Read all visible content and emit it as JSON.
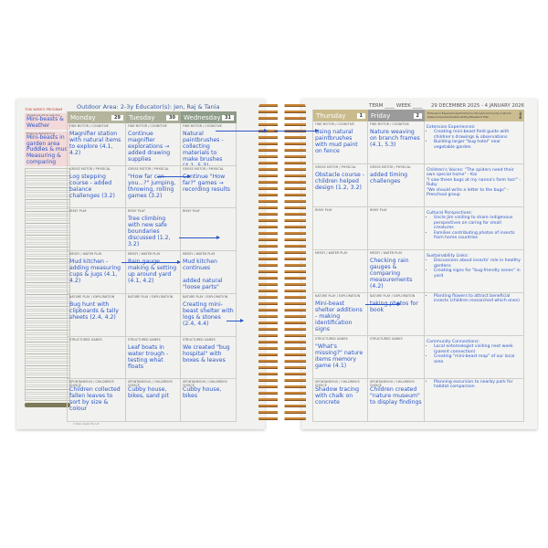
{
  "left": {
    "title": "Outdoor Area: 2-3y  Educator(s): Jen, Raj & Tania",
    "sidebar": {
      "heading": "THIS WEEK'S PROGRAM",
      "boxes": [
        {
          "label": "Interests we will be exploring",
          "value": "Mini-beasts & Weather"
        },
        {
          "label": "Emerging ideas/planning",
          "value": "Mini-beasts in garden area Puddles & mud Measuring & comparing"
        }
      ],
      "footer": "",
      "copyright": "© Bobo Sketch Pty Ltd"
    },
    "days": [
      {
        "name": "Monday",
        "date": "29",
        "color": "#b3b49b"
      },
      {
        "name": "Tuesday",
        "date": "30",
        "color": "#a8ad98"
      },
      {
        "name": "Wednesday",
        "date": "31",
        "color": "#8e9c89"
      }
    ],
    "rows": [
      {
        "category": "Fine motor / Cognitive",
        "cells": [
          "Magnifier station with natural items to explore (4.1, 4.2)",
          "Continue magnifier explorations → added drawing supplies",
          "Natural paintbrushes - collecting materials to make brushes (4.1, 5.3)"
        ]
      },
      {
        "category": "Gross motor / Physical",
        "cells": [
          "Log stepping course - added balance challenges (3.2)",
          "\"How far can you...?\" jumping, throwing, rolling games (3.2)",
          "Continue \"How far?\" games → recording results"
        ]
      },
      {
        "category": "Risky play",
        "cells": [
          "",
          "Tree climbing with new safe boundaries discussed (1.2, 3.2)",
          ""
        ]
      },
      {
        "category": "Messy / Water play",
        "cells": [
          "Mud kitchen - adding measuring cups & jugs (4.1, 4.2)",
          "Rain gauge making & setting up around yard (4.1, 4.2)",
          "Mud kitchen continues\n\nadded natural \"loose parts\""
        ]
      },
      {
        "category": "Nature play / Exploration",
        "cells": [
          "Bug hunt with clipboards & tally sheets (2.4, 4.2)",
          "",
          "Creating mini-beast shelter with logs & stones (2.4, 4.4)"
        ]
      },
      {
        "category": "Structured games",
        "cells": [
          "",
          "Leaf boats in water trough - testing what floats",
          "We created \"bug hospital\" with boxes & leaves"
        ]
      },
      {
        "category": "Spontaneous / Children's choice",
        "cells": [
          "Children collected fallen leaves to sort by size & colour",
          "Cubby house, bikes, sand pit",
          "Cubby house, bikes"
        ]
      }
    ]
  },
  "right": {
    "term_label": "TERM",
    "week_label": "WEEK",
    "date_range": "29 DECEMBER 2025 - 4 JANUARY 2026",
    "days": [
      {
        "name": "Thursday",
        "date": "1",
        "color": "#c9bb8c"
      },
      {
        "name": "Friday",
        "date": "2",
        "color": "#9b9b9b"
      }
    ],
    "ext_header": "Extension Experiences/Children's Voices/Community Cultural Responsiveness/Sustainability/Weekend Plan",
    "weekend": [
      "3",
      "4"
    ],
    "rows": [
      {
        "category": "Fine motor / Cognitive",
        "cells": [
          "Using natural paintbrushes with mud paint on fence",
          "Nature weaving on branch frames (4.1, 5.3)"
        ],
        "ext": {
          "title": "Extension Experiences:",
          "items": [
            "Creating mini-beast field guide with children's drawings & observations",
            "Building larger \"bug hotel\" near vegetable garden"
          ]
        }
      },
      {
        "category": "Gross motor / Physical",
        "cells": [
          "Obstacle course - children helped design (1.2, 3.2)",
          "added timing challenges"
        ],
        "ext": {
          "title": "Children's Voices: \"The spiders need their own special home\" - Kai\n\"I saw these bugs at my nanna's farm too!\" - Ruby\n\"We should write a letter to the bugs\" - Preschool group",
          "items": []
        }
      },
      {
        "category": "Risky play",
        "cells": [
          "",
          ""
        ],
        "ext": {
          "title": "Cultural Perspectives:",
          "items": [
            "Uncle Jim visiting to share indigenous perspectives on caring for small creatures",
            "Families contributing photos of insects from home countries"
          ]
        }
      },
      {
        "category": "Messy / Water play",
        "cells": [
          "",
          "Checking rain gauges & comparing measurements (4.2)"
        ],
        "ext": {
          "title": "Sustainability Links:",
          "items": [
            "Discussions about insects' role in healthy gardens",
            "Creating signs for \"bug-friendly zones\" in yard"
          ]
        }
      },
      {
        "category": "Nature play / Exploration",
        "cells": [
          "Mini-beast shelter additions - making identification signs",
          "taking photos for book"
        ],
        "ext": {
          "title": "",
          "items": [
            "Planting flowers to attract beneficial insects (children researched which ones)"
          ]
        }
      },
      {
        "category": "Structured games",
        "cells": [
          "\"What's missing?\" nature items memory game (4.1)",
          ""
        ],
        "ext": {
          "title": "Community Connections:",
          "items": [
            "Local entomologist visiting next week (parent connection)",
            "Creating \"mini-beast map\" of our local area"
          ]
        }
      },
      {
        "category": "Spontaneous / Children's choice",
        "cells": [
          "Shadow tracing with chalk on concrete",
          "Children created \"nature museum\" to display findings"
        ],
        "ext": {
          "title": "",
          "items": [
            "Planning excursion to nearby park for habitat comparison"
          ]
        }
      }
    ]
  },
  "colors": {
    "ink": "#2b57c9",
    "page": "#f1f1ef",
    "spiral": "#c8873a"
  }
}
